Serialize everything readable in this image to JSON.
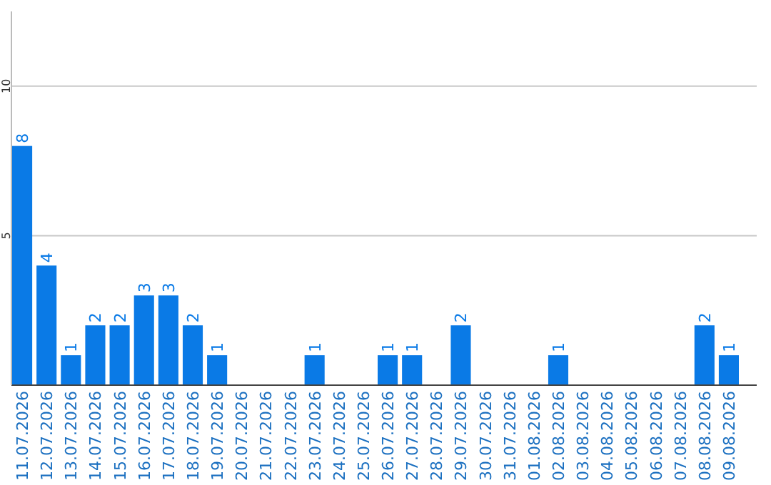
{
  "chart_data": {
    "type": "bar",
    "categories": [
      "11.07.2026",
      "12.07.2026",
      "13.07.2026",
      "14.07.2026",
      "15.07.2026",
      "16.07.2026",
      "17.07.2026",
      "18.07.2026",
      "19.07.2026",
      "20.07.2026",
      "21.07.2026",
      "22.07.2026",
      "23.07.2026",
      "24.07.2026",
      "25.07.2026",
      "26.07.2026",
      "27.07.2026",
      "28.07.2026",
      "29.07.2026",
      "30.07.2026",
      "31.07.2026",
      "01.08.2026",
      "02.08.2026",
      "03.08.2026",
      "04.08.2026",
      "05.08.2026",
      "06.08.2026",
      "07.08.2026",
      "08.08.2026",
      "09.08.2026"
    ],
    "values": [
      8,
      4,
      1,
      2,
      2,
      3,
      3,
      2,
      1,
      0,
      0,
      0,
      1,
      0,
      0,
      1,
      1,
      0,
      2,
      0,
      0,
      0,
      1,
      0,
      0,
      0,
      0,
      0,
      2,
      1
    ],
    "value_labels": [
      "8",
      "4",
      "1",
      "2",
      "2",
      "3",
      "3",
      "2",
      "1",
      null,
      null,
      null,
      "1",
      null,
      null,
      "1",
      "1",
      null,
      "2",
      null,
      null,
      null,
      "1",
      null,
      null,
      null,
      null,
      null,
      "2",
      "1"
    ],
    "color": "#0a7ae6",
    "ylim": [
      0,
      12.5
    ],
    "yticks": [
      5,
      10
    ],
    "grid": "y"
  }
}
